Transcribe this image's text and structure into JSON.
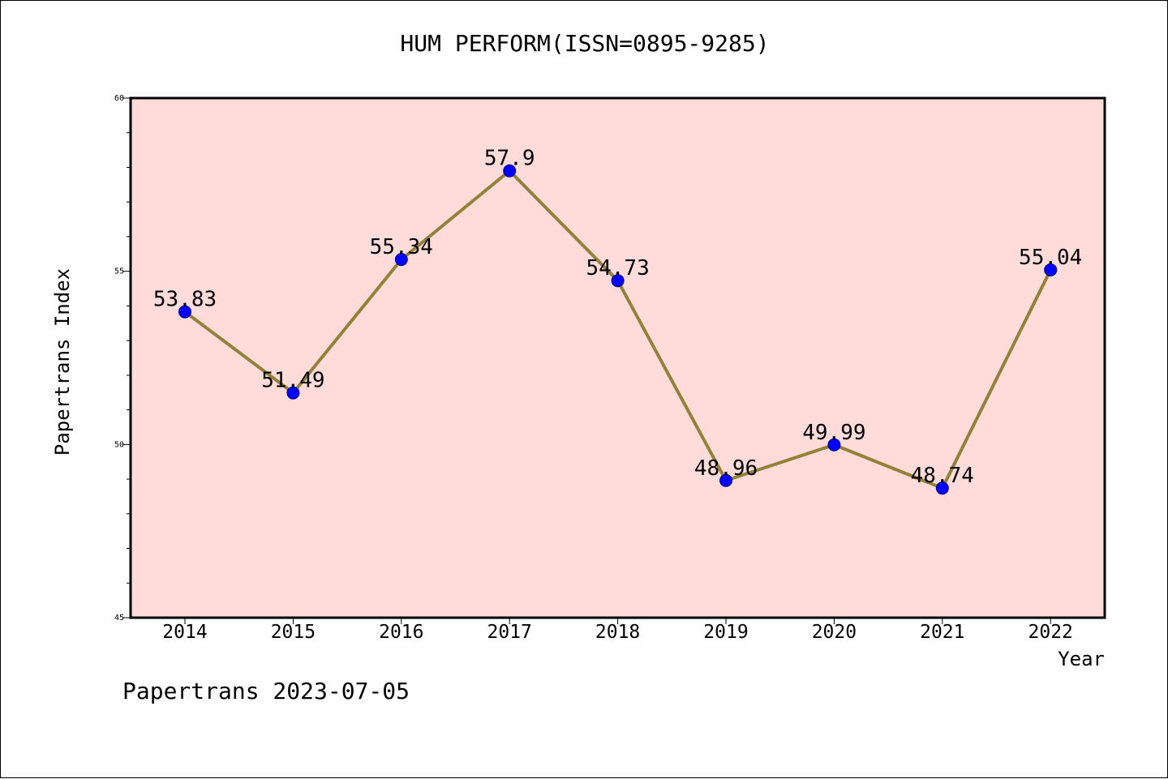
{
  "footer": {
    "text": "Papertrans 2023-07-05"
  },
  "colors": {
    "plot_background": "#ffdcd9",
    "line": "#938039",
    "marker_fill": "#0000ff",
    "marker_edge": "#000080",
    "axis": "#000000"
  },
  "chart_data": {
    "type": "line",
    "title": "HUM PERFORM(ISSN=0895-9285)",
    "xlabel": "Year",
    "ylabel": "Papertrans Index",
    "categories": [
      "2014",
      "2015",
      "2016",
      "2017",
      "2018",
      "2019",
      "2020",
      "2021",
      "2022"
    ],
    "series": [
      {
        "values": [
          53.83,
          51.49,
          55.34,
          57.9,
          54.73,
          48.96,
          49.99,
          48.74,
          55.04
        ],
        "labels": [
          "53.83",
          "51.49",
          "55.34",
          "57.9",
          "54.73",
          "48.96",
          "49.99",
          "48.74",
          "55.04"
        ]
      }
    ],
    "ylim": [
      45,
      60
    ],
    "yticks": [
      45,
      50,
      55,
      60
    ],
    "ytick_labels": [
      "45",
      "50",
      "55",
      "60"
    ],
    "minor_ytick_step": 1,
    "grid": false,
    "legend": "none"
  }
}
